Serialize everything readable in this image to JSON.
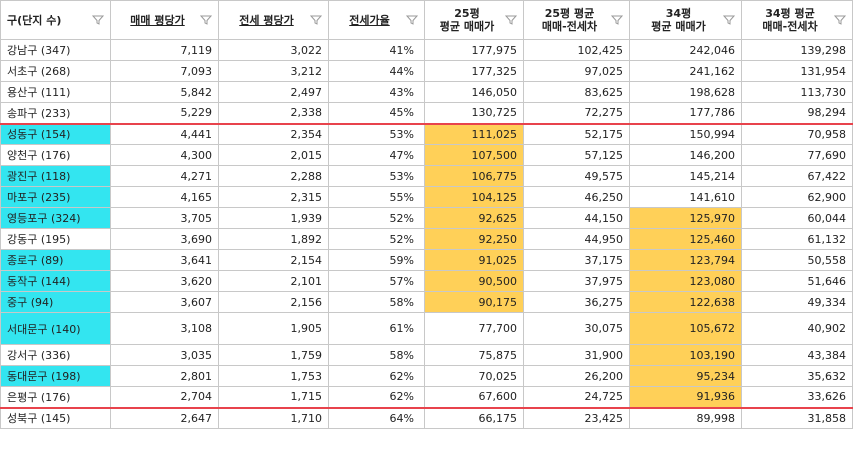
{
  "headers": [
    {
      "label": "구(단지 수)",
      "underline": false
    },
    {
      "label": "매매 평당가",
      "underline": true
    },
    {
      "label": "전세 평당가",
      "underline": true
    },
    {
      "label": "전세가율",
      "underline": true
    },
    {
      "label_line1": "25평",
      "label_line2": "평균 매매가",
      "underline": false
    },
    {
      "label_line1": "25평 평균",
      "label_line2": "매매-전세차",
      "underline": false
    },
    {
      "label_line1": "34평",
      "label_line2": "평균 매매가",
      "underline": false
    },
    {
      "label_line1": "34평 평균",
      "label_line2": "매매-전세차",
      "underline": false
    }
  ],
  "rows": [
    {
      "name": "강남구 (347)",
      "sale_ppy": "7,119",
      "jeonse_ppy": "3,022",
      "ratio": "41%",
      "avg25": "177,975",
      "gap25": "102,425",
      "avg34": "242,046",
      "gap34": "139,298",
      "cyan": false,
      "gold25": false,
      "gold34": false
    },
    {
      "name": "서초구 (268)",
      "sale_ppy": "7,093",
      "jeonse_ppy": "3,212",
      "ratio": "44%",
      "avg25": "177,325",
      "gap25": "97,025",
      "avg34": "241,162",
      "gap34": "131,954",
      "cyan": false,
      "gold25": false,
      "gold34": false
    },
    {
      "name": "용산구 (111)",
      "sale_ppy": "5,842",
      "jeonse_ppy": "2,497",
      "ratio": "43%",
      "avg25": "146,050",
      "gap25": "83,625",
      "avg34": "198,628",
      "gap34": "113,730",
      "cyan": false,
      "gold25": false,
      "gold34": false
    },
    {
      "name": "송파구 (233)",
      "sale_ppy": "5,229",
      "jeonse_ppy": "2,338",
      "ratio": "45%",
      "avg25": "130,725",
      "gap25": "72,275",
      "avg34": "177,786",
      "gap34": "98,294",
      "cyan": false,
      "gold25": false,
      "gold34": false
    },
    {
      "name": "성동구 (154)",
      "sale_ppy": "4,441",
      "jeonse_ppy": "2,354",
      "ratio": "53%",
      "avg25": "111,025",
      "gap25": "52,175",
      "avg34": "150,994",
      "gap34": "70,958",
      "cyan": true,
      "gold25": true,
      "gold34": false
    },
    {
      "name": "양천구 (176)",
      "sale_ppy": "4,300",
      "jeonse_ppy": "2,015",
      "ratio": "47%",
      "avg25": "107,500",
      "gap25": "57,125",
      "avg34": "146,200",
      "gap34": "77,690",
      "cyan": false,
      "gold25": true,
      "gold34": false
    },
    {
      "name": "광진구 (118)",
      "sale_ppy": "4,271",
      "jeonse_ppy": "2,288",
      "ratio": "53%",
      "avg25": "106,775",
      "gap25": "49,575",
      "avg34": "145,214",
      "gap34": "67,422",
      "cyan": true,
      "gold25": true,
      "gold34": false
    },
    {
      "name": "마포구 (235)",
      "sale_ppy": "4,165",
      "jeonse_ppy": "2,315",
      "ratio": "55%",
      "avg25": "104,125",
      "gap25": "46,250",
      "avg34": "141,610",
      "gap34": "62,900",
      "cyan": true,
      "gold25": true,
      "gold34": false
    },
    {
      "name": "영등포구 (324)",
      "sale_ppy": "3,705",
      "jeonse_ppy": "1,939",
      "ratio": "52%",
      "avg25": "92,625",
      "gap25": "44,150",
      "avg34": "125,970",
      "gap34": "60,044",
      "cyan": true,
      "gold25": true,
      "gold34": true
    },
    {
      "name": "강동구 (195)",
      "sale_ppy": "3,690",
      "jeonse_ppy": "1,892",
      "ratio": "52%",
      "avg25": "92,250",
      "gap25": "44,950",
      "avg34": "125,460",
      "gap34": "61,132",
      "cyan": false,
      "gold25": true,
      "gold34": true
    },
    {
      "name": "종로구 (89)",
      "sale_ppy": "3,641",
      "jeonse_ppy": "2,154",
      "ratio": "59%",
      "avg25": "91,025",
      "gap25": "37,175",
      "avg34": "123,794",
      "gap34": "50,558",
      "cyan": true,
      "gold25": true,
      "gold34": true
    },
    {
      "name": "동작구 (144)",
      "sale_ppy": "3,620",
      "jeonse_ppy": "2,101",
      "ratio": "57%",
      "avg25": "90,500",
      "gap25": "37,975",
      "avg34": "123,080",
      "gap34": "51,646",
      "cyan": true,
      "gold25": true,
      "gold34": true
    },
    {
      "name": "중구 (94)",
      "sale_ppy": "3,607",
      "jeonse_ppy": "2,156",
      "ratio": "58%",
      "avg25": "90,175",
      "gap25": "36,275",
      "avg34": "122,638",
      "gap34": "49,334",
      "cyan": true,
      "gold25": true,
      "gold34": true
    },
    {
      "name": "서대문구 (140)",
      "sale_ppy": "3,108",
      "jeonse_ppy": "1,905",
      "ratio": "61%",
      "avg25": "77,700",
      "gap25": "30,075",
      "avg34": "105,672",
      "gap34": "40,902",
      "cyan": true,
      "gold25": false,
      "gold34": true,
      "tall": true
    },
    {
      "name": "강서구 (336)",
      "sale_ppy": "3,035",
      "jeonse_ppy": "1,759",
      "ratio": "58%",
      "avg25": "75,875",
      "gap25": "31,900",
      "avg34": "103,190",
      "gap34": "43,384",
      "cyan": false,
      "gold25": false,
      "gold34": true
    },
    {
      "name": "동대문구 (198)",
      "sale_ppy": "2,801",
      "jeonse_ppy": "1,753",
      "ratio": "62%",
      "avg25": "70,025",
      "gap25": "26,200",
      "avg34": "95,234",
      "gap34": "35,632",
      "cyan": true,
      "gold25": false,
      "gold34": true
    },
    {
      "name": "은평구 (176)",
      "sale_ppy": "2,704",
      "jeonse_ppy": "1,715",
      "ratio": "62%",
      "avg25": "67,600",
      "gap25": "24,725",
      "avg34": "91,936",
      "gap34": "33,626",
      "cyan": false,
      "gold25": false,
      "gold34": true
    },
    {
      "name": "성북구 (145)",
      "sale_ppy": "2,647",
      "jeonse_ppy": "1,710",
      "ratio": "64%",
      "avg25": "66,175",
      "gap25": "23,425",
      "avg34": "89,998",
      "gap34": "31,858",
      "cyan": false,
      "gold25": false,
      "gold34": false
    }
  ],
  "red_separators_before": [
    "성동구 (154)",
    "성북구 (145)"
  ],
  "colors": {
    "district_highlight": "#33e5f0",
    "price_highlight": "#ffd058",
    "separator": "#e8434c"
  },
  "filter_icon": "filter-funnel-icon"
}
